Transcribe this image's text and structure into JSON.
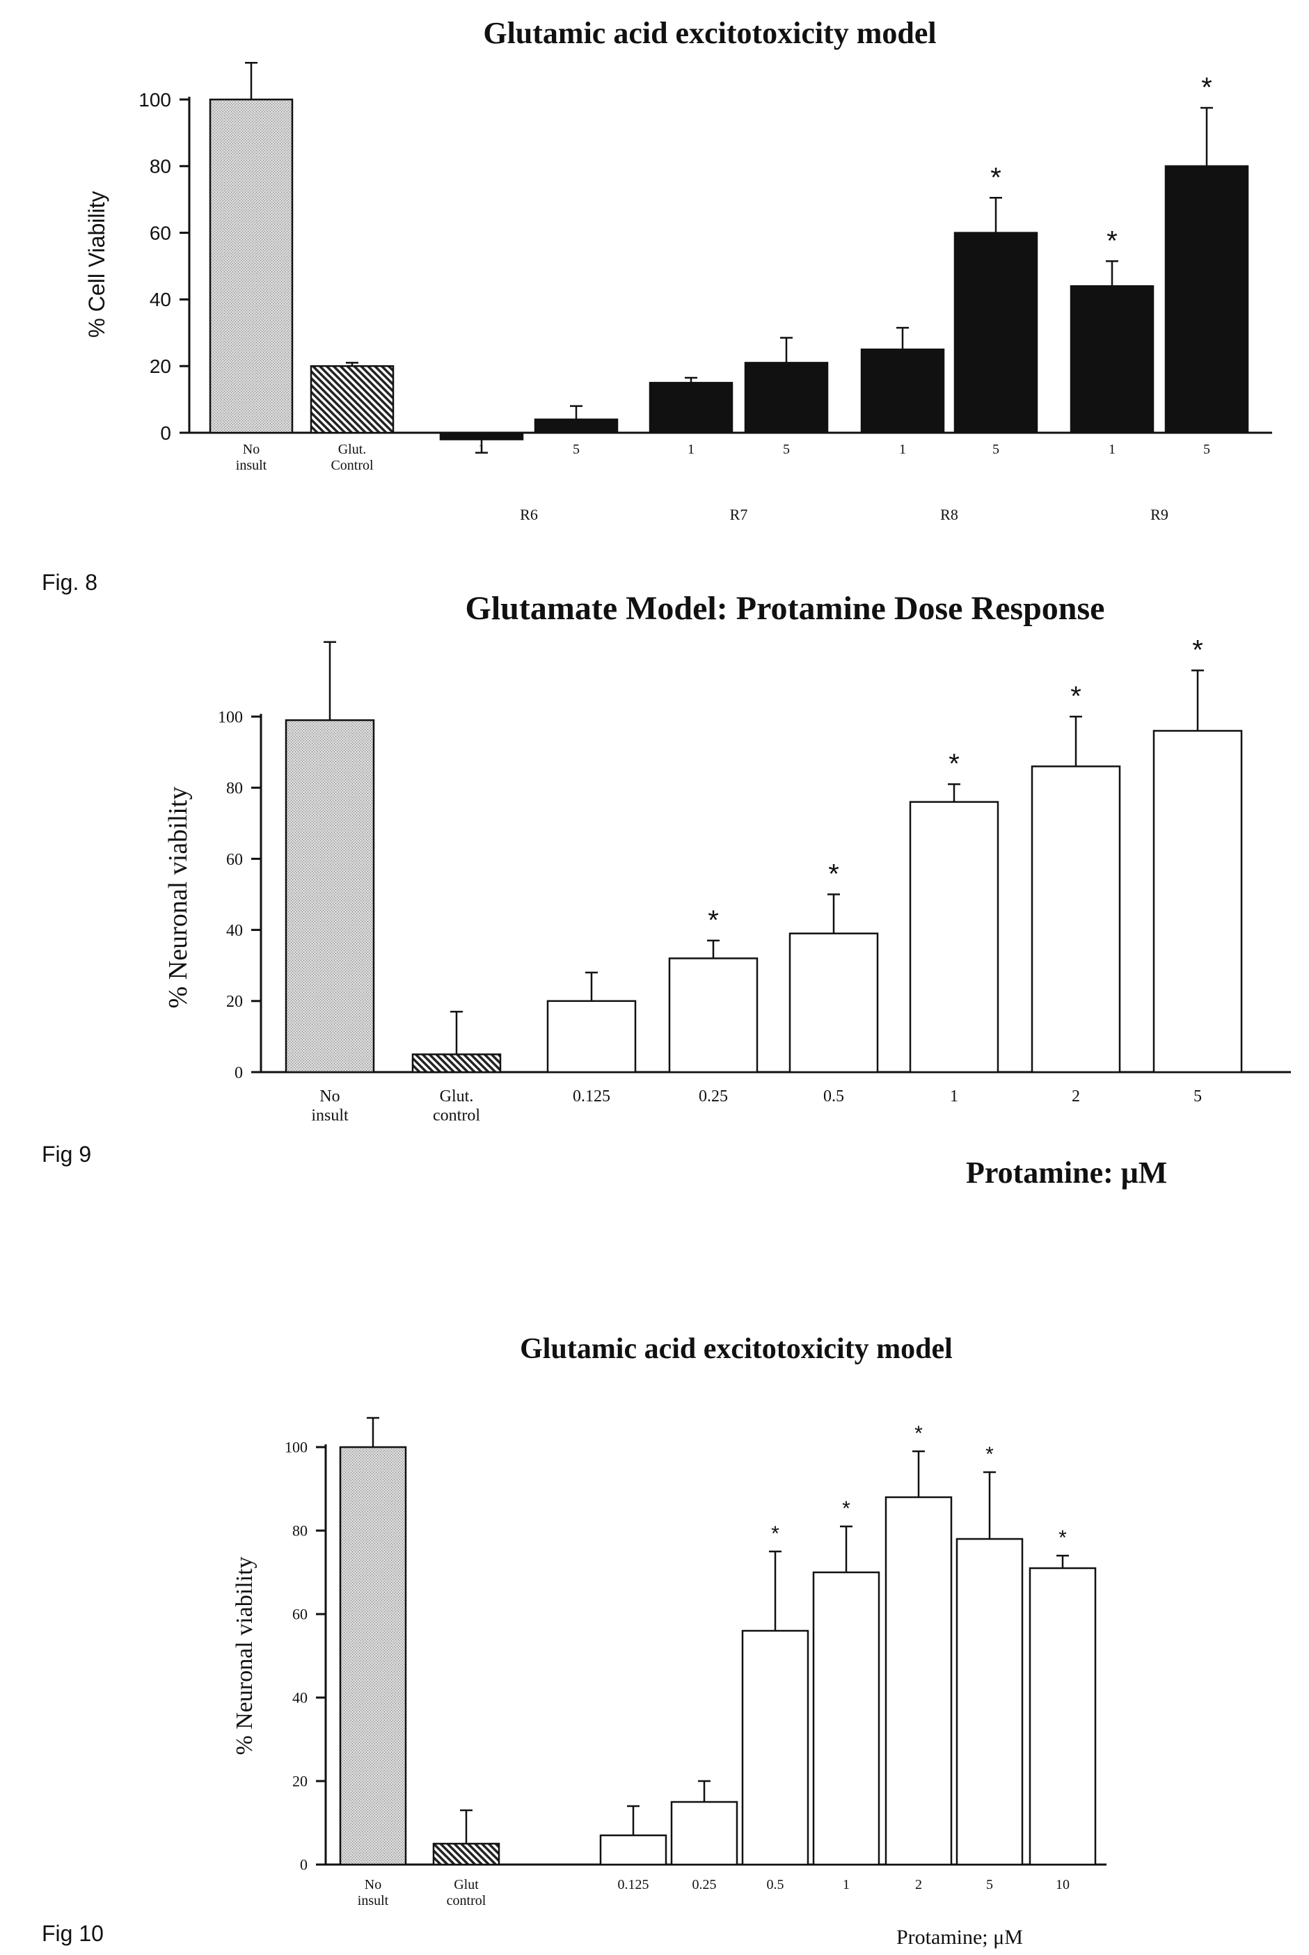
{
  "figures": [
    {
      "label": "Fig. 8"
    },
    {
      "label": "Fig 9"
    },
    {
      "label": "Fig 10"
    }
  ],
  "colors": {
    "stipple": "#cfcfcf",
    "hatch": "#333333",
    "solid": "#111111",
    "open": "#ffffff",
    "axis": "#111111"
  },
  "chart_data": [
    {
      "type": "bar",
      "title": "Glutamic acid excitotoxicity model",
      "ylabel": "% Cell Viability",
      "xlabel": "",
      "ylim": [
        0,
        100
      ],
      "yticks": [
        0,
        20,
        40,
        60,
        80,
        100
      ],
      "grid": false,
      "categories": [
        "No\ninsult",
        "Glut.\nControl",
        "1",
        "5",
        "1",
        "5",
        "1",
        "5",
        "1",
        "5"
      ],
      "group_labels": [
        {
          "label": "R6",
          "members": [
            2,
            3
          ]
        },
        {
          "label": "R7",
          "members": [
            4,
            5
          ]
        },
        {
          "label": "R8",
          "members": [
            6,
            7
          ]
        },
        {
          "label": "R9",
          "members": [
            8,
            9
          ]
        }
      ],
      "values": [
        100,
        20,
        -2,
        4,
        15,
        21,
        25,
        60,
        44,
        80
      ],
      "errors": [
        11,
        1,
        4,
        4,
        1.5,
        7.5,
        6.5,
        10.5,
        7.5,
        17.5
      ],
      "significant": [
        false,
        false,
        false,
        false,
        false,
        false,
        false,
        true,
        true,
        true
      ],
      "fills": [
        "stipple",
        "hatch",
        "solid",
        "solid",
        "solid",
        "solid",
        "solid",
        "solid",
        "solid",
        "solid"
      ],
      "marker": "*"
    },
    {
      "type": "bar",
      "title": "Glutamate Model: Protamine Dose Response",
      "ylabel": "% Neuronal viability",
      "xlabel": "Protamine: μM",
      "ylim": [
        0,
        100
      ],
      "yticks": [
        0,
        20,
        40,
        60,
        80,
        100
      ],
      "grid": false,
      "categories": [
        "No\ninsult",
        "Glut.\ncontrol",
        "0.125",
        "0.25",
        "0.5",
        "1",
        "2",
        "5"
      ],
      "values": [
        99,
        5,
        20,
        32,
        39,
        76,
        86,
        96
      ],
      "errors": [
        22,
        12,
        8,
        5,
        11,
        5,
        14,
        17
      ],
      "significant": [
        false,
        false,
        false,
        true,
        true,
        true,
        true,
        true
      ],
      "fills": [
        "stipple",
        "hatch",
        "open",
        "open",
        "open",
        "open",
        "open",
        "open"
      ],
      "marker": "*"
    },
    {
      "type": "bar",
      "title": "Glutamic acid excitotoxicity model",
      "ylabel": "% Neuronal viability",
      "xlabel": "Protamine; μM",
      "ylim": [
        0,
        100
      ],
      "yticks": [
        0,
        20,
        40,
        60,
        80,
        100
      ],
      "grid": false,
      "categories": [
        "No\ninsult",
        "Glut\ncontrol",
        "0.125",
        "0.25",
        "0.5",
        "1",
        "2",
        "5",
        "10"
      ],
      "values": [
        100,
        5,
        7,
        15,
        56,
        70,
        88,
        78,
        71
      ],
      "errors": [
        7,
        8,
        7,
        5,
        19,
        11,
        11,
        16,
        3
      ],
      "significant": [
        false,
        false,
        false,
        false,
        true,
        true,
        true,
        true,
        true
      ],
      "fills": [
        "stipple",
        "hatch",
        "open",
        "open",
        "open",
        "open",
        "open",
        "open",
        "open"
      ],
      "marker": "*"
    }
  ]
}
